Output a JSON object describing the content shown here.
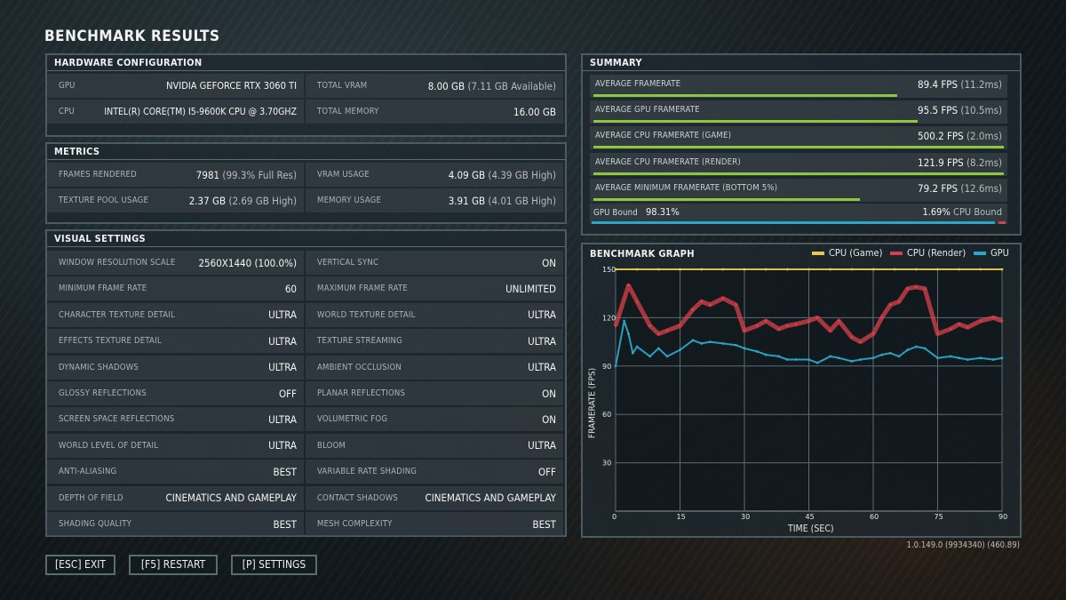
{
  "title": "BENCHMARK RESULTS",
  "hardware": {
    "title": "HARDWARE CONFIGURATION",
    "rows": [
      {
        "label": "GPU",
        "value": "NVIDIA GEFORCE RTX 3060 TI",
        "label2": "TOTAL VRAM",
        "value2": "8.00 GB",
        "sub2": "(7.11 GB Available)"
      },
      {
        "label": "CPU",
        "value": "INTEL(R) CORE(TM) I5-9600K CPU @ 3.70GHZ",
        "label2": "TOTAL MEMORY",
        "value2": "16.00 GB",
        "sub2": ""
      }
    ]
  },
  "metrics": {
    "title": "METRICS",
    "rows": [
      {
        "label": "FRAMES RENDERED",
        "value": "7981",
        "sub": "(99.3% Full Res)",
        "label2": "VRAM USAGE",
        "value2": "4.09 GB",
        "sub2": "(4.39 GB High)"
      },
      {
        "label": "TEXTURE POOL USAGE",
        "value": "2.37 GB",
        "sub": "(2.69 GB High)",
        "label2": "MEMORY USAGE",
        "value2": "3.91 GB",
        "sub2": "(4.01 GB High)"
      }
    ]
  },
  "visual": {
    "title": "VISUAL SETTINGS",
    "rows": [
      {
        "l1": "WINDOW RESOLUTION SCALE",
        "v1": "2560X1440 (100.0%)",
        "l2": "VERTICAL SYNC",
        "v2": "ON"
      },
      {
        "l1": "MINIMUM FRAME RATE",
        "v1": "60",
        "l2": "MAXIMUM FRAME RATE",
        "v2": "UNLIMITED"
      },
      {
        "l1": "CHARACTER TEXTURE DETAIL",
        "v1": "ULTRA",
        "l2": "WORLD TEXTURE DETAIL",
        "v2": "ULTRA"
      },
      {
        "l1": "EFFECTS TEXTURE DETAIL",
        "v1": "ULTRA",
        "l2": "TEXTURE STREAMING",
        "v2": "ULTRA"
      },
      {
        "l1": "DYNAMIC SHADOWS",
        "v1": "ULTRA",
        "l2": "AMBIENT OCCLUSION",
        "v2": "ULTRA"
      },
      {
        "l1": "GLOSSY REFLECTIONS",
        "v1": "OFF",
        "l2": "PLANAR REFLECTIONS",
        "v2": "ON"
      },
      {
        "l1": "SCREEN SPACE REFLECTIONS",
        "v1": "ULTRA",
        "l2": "VOLUMETRIC FOG",
        "v2": "ON"
      },
      {
        "l1": "WORLD LEVEL OF DETAIL",
        "v1": "ULTRA",
        "l2": "BLOOM",
        "v2": "ULTRA"
      },
      {
        "l1": "ANTI-ALIASING",
        "v1": "BEST",
        "l2": "VARIABLE RATE SHADING",
        "v2": "OFF"
      },
      {
        "l1": "DEPTH OF FIELD",
        "v1": "CINEMATICS AND GAMEPLAY",
        "l2": "CONTACT SHADOWS",
        "v2": "CINEMATICS AND GAMEPLAY"
      },
      {
        "l1": "SHADING QUALITY",
        "v1": "BEST",
        "l2": "MESH COMPLEXITY",
        "v2": "BEST"
      }
    ]
  },
  "summary": {
    "title": "SUMMARY",
    "rows": [
      {
        "label": "AVERAGE FRAMERATE",
        "value": "89.4 FPS",
        "sub": "(11.2ms)",
        "bar_fraction": 0.74
      },
      {
        "label": "AVERAGE GPU FRAMERATE",
        "value": "95.5 FPS",
        "sub": "(10.5ms)",
        "bar_fraction": 0.79
      },
      {
        "label": "AVERAGE CPU FRAMERATE (GAME)",
        "value": "500.2 FPS",
        "sub": "(2.0ms)",
        "bar_fraction": 1.0
      },
      {
        "label": "AVERAGE CPU FRAMERATE (RENDER)",
        "value": "121.9 FPS",
        "sub": "(8.2ms)",
        "bar_fraction": 1.0
      },
      {
        "label": "AVERAGE MINIMUM FRAMERATE (BOTTOM 5%)",
        "value": "79.2 FPS",
        "sub": "(12.6ms)",
        "bar_fraction": 0.65
      }
    ],
    "gpu_bound": {
      "label": "GPU Bound",
      "value": "98.31%",
      "cpu_value": "1.69%",
      "cpu_label": "CPU Bound",
      "gpu_fraction": 0.9831
    }
  },
  "graph": {
    "title": "BENCHMARK GRAPH",
    "legend": [
      {
        "name": "CPU (Game)",
        "color": "#e8c84a"
      },
      {
        "name": "CPU (Render)",
        "color": "#d9414a"
      },
      {
        "name": "GPU",
        "color": "#2ba6c4"
      }
    ]
  },
  "chart_data": {
    "type": "scatter",
    "title": "BENCHMARK GRAPH",
    "xlabel": "TIME (SEC)",
    "ylabel": "FRAMERATE (FPS)",
    "xlim": [
      0,
      90
    ],
    "ylim": [
      0,
      150
    ],
    "x_ticks": [
      "0",
      "15",
      "30",
      "45",
      "60",
      "75",
      "90"
    ],
    "y_ticks": [
      "30",
      "60",
      "90",
      "120",
      "150"
    ],
    "grid": true,
    "legend_position": "top-right",
    "series": [
      {
        "name": "CPU (Game)",
        "color": "#e8c84a",
        "values": [
          150,
          150,
          150,
          150,
          150,
          150,
          150,
          150,
          150,
          150,
          150,
          150,
          150,
          150,
          150,
          150,
          150,
          150,
          150
        ]
      },
      {
        "name": "CPU (Render)",
        "color": "#d9414a",
        "x": [
          0,
          3,
          5,
          8,
          10,
          12,
          15,
          18,
          20,
          22,
          25,
          28,
          30,
          33,
          35,
          38,
          40,
          42,
          45,
          47,
          50,
          52,
          55,
          57,
          60,
          62,
          64,
          66,
          68,
          70,
          72,
          75,
          78,
          80,
          82,
          85,
          88,
          90
        ],
        "values": [
          115,
          140,
          130,
          115,
          110,
          112,
          115,
          125,
          130,
          128,
          132,
          128,
          112,
          115,
          118,
          113,
          115,
          116,
          118,
          120,
          112,
          118,
          108,
          105,
          110,
          120,
          128,
          130,
          138,
          139,
          138,
          110,
          113,
          116,
          114,
          118,
          120,
          118
        ]
      },
      {
        "name": "GPU",
        "color": "#2ba6c4",
        "x": [
          0,
          2,
          3,
          4,
          5,
          8,
          10,
          12,
          15,
          18,
          20,
          22,
          25,
          28,
          30,
          33,
          35,
          38,
          40,
          42,
          45,
          47,
          50,
          52,
          55,
          57,
          60,
          62,
          64,
          66,
          68,
          70,
          72,
          75,
          78,
          80,
          82,
          85,
          88,
          90
        ],
        "values": [
          90,
          118,
          110,
          98,
          102,
          96,
          101,
          96,
          100,
          106,
          104,
          105,
          104,
          103,
          101,
          99,
          97,
          96,
          94,
          94,
          94,
          92,
          96,
          95,
          93,
          94,
          95,
          97,
          98,
          96,
          100,
          102,
          101,
          95,
          96,
          95,
          94,
          95,
          94,
          95
        ]
      }
    ]
  },
  "buttons": {
    "exit": "[ESC] EXIT",
    "restart": "[F5] RESTART",
    "settings": "[P] SETTINGS"
  },
  "version": "1.0.149.0 (9934340) (460.89)"
}
